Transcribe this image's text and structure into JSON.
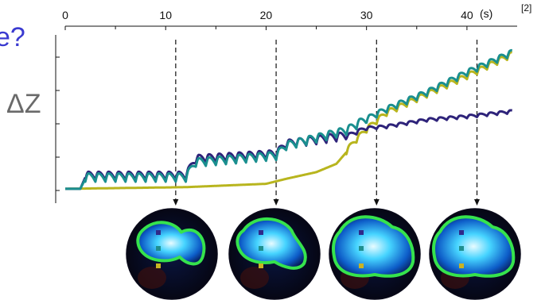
{
  "partial_title": "e?",
  "reference": "[2]",
  "colors": {
    "series_dark": "#2e237a",
    "series_teal": "#1a8f8f",
    "series_yellow": "#b8b51e",
    "contour": "#36e34d",
    "marker_dark": "#2f2a8a",
    "marker_teal": "#1f8f8f",
    "marker_yellow": "#c9b323"
  },
  "chart_data": {
    "type": "line",
    "xlabel": "",
    "x_unit": "(s)",
    "ylabel": "ΔZ",
    "xlim": [
      0,
      45
    ],
    "x_ticks": [
      0,
      10,
      20,
      30,
      40
    ],
    "x_tick_labels": [
      "0",
      "10",
      "20",
      "30",
      "40"
    ],
    "ylim": [
      0,
      5
    ],
    "y_ticks": [
      0,
      1,
      2,
      3,
      4
    ],
    "x_axis_position": "top",
    "grid": false,
    "legend": "none",
    "series": [
      {
        "color_key": "series_dark",
        "x": [
          0,
          1.5,
          2,
          12,
          13,
          21,
          22,
          28,
          30,
          32,
          36,
          40,
          44.5
        ],
        "y": [
          0.05,
          0.05,
          0.4,
          0.4,
          0.9,
          1.05,
          1.35,
          1.6,
          1.85,
          1.9,
          2.1,
          2.2,
          2.35
        ]
      },
      {
        "color_key": "series_teal",
        "x": [
          0,
          1.5,
          2,
          12,
          13,
          21,
          22,
          28,
          30,
          32,
          36,
          40,
          44.5
        ],
        "y": [
          0.05,
          0.05,
          0.35,
          0.35,
          0.8,
          1.0,
          1.3,
          1.75,
          2.1,
          2.4,
          2.9,
          3.5,
          4.1
        ]
      },
      {
        "color_key": "series_yellow",
        "x": [
          0,
          12,
          20,
          22,
          25,
          27,
          28,
          29,
          30,
          32,
          36,
          40,
          44.5
        ],
        "y": [
          0.05,
          0.1,
          0.2,
          0.35,
          0.55,
          0.8,
          1.15,
          1.5,
          1.8,
          2.3,
          2.85,
          3.4,
          4.05
        ]
      }
    ],
    "oscillation": {
      "period_s": 1,
      "amplitude": 0.25
    },
    "marker_times": [
      11,
      21,
      31,
      41
    ]
  },
  "lung_images": [
    {
      "time": 11,
      "region_scale": 0.85,
      "shape": "two-lobe"
    },
    {
      "time": 21,
      "region_scale": 0.95,
      "shape": "lobe"
    },
    {
      "time": 31,
      "region_scale": 1.1,
      "shape": "wide"
    },
    {
      "time": 41,
      "region_scale": 1.1,
      "shape": "wide"
    }
  ]
}
